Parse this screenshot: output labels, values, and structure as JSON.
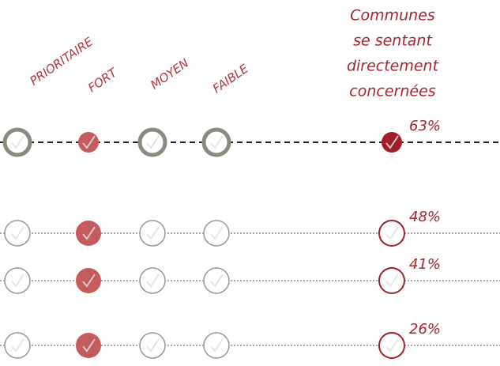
{
  "header": {
    "columns": [
      "PRIORITAIRE",
      "FORT",
      "MOYEN",
      "FAIBLE"
    ],
    "share_title": [
      "Communes",
      "se sentant",
      "directement",
      "concernées"
    ]
  },
  "rows": [
    {
      "rating": "FORT",
      "percent": "63%"
    },
    {
      "rating": "FORT",
      "percent": "48%"
    },
    {
      "rating": "FORT",
      "percent": "41%"
    },
    {
      "rating": "FORT",
      "percent": "26%"
    }
  ]
}
